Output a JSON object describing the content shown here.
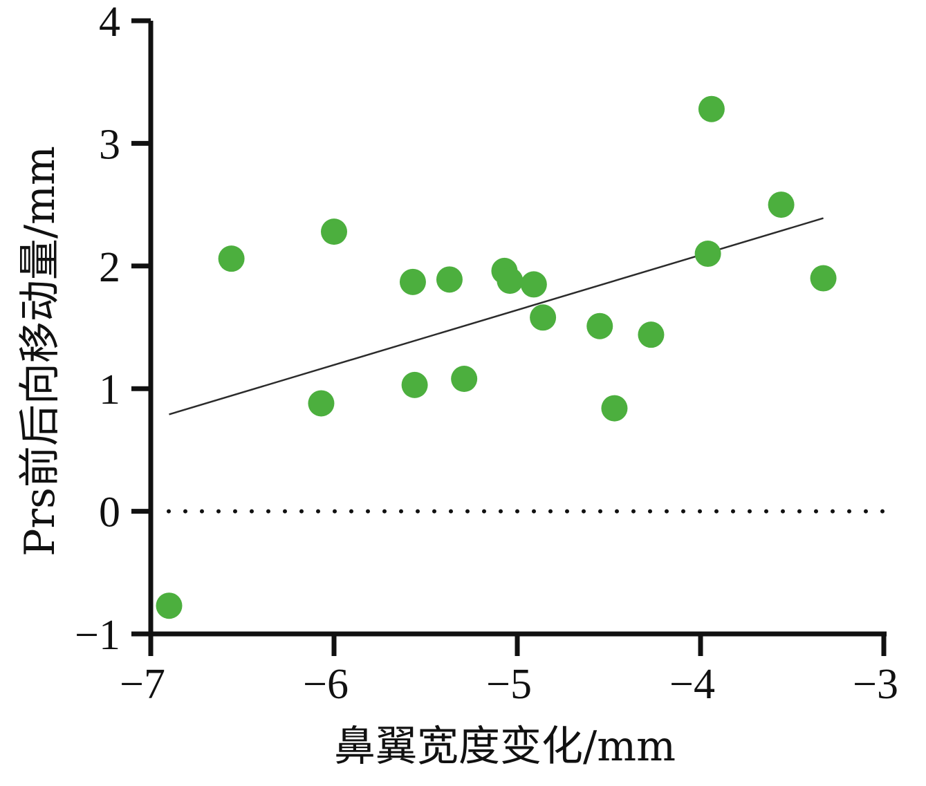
{
  "chart_data": {
    "type": "scatter",
    "xlabel": "鼻翼宽度变化/mm",
    "ylabel": "Prs前后向移动量/mm",
    "xlim": [
      -7,
      -3
    ],
    "ylim": [
      -1,
      4
    ],
    "x_ticks": [
      -7,
      -6,
      -5,
      -4,
      -3
    ],
    "y_ticks": [
      -1,
      0,
      1,
      2,
      3,
      4
    ],
    "x_tick_labels": [
      "−7",
      "−6",
      "−5",
      "−4",
      "−3"
    ],
    "y_tick_labels": [
      "−1",
      "0",
      "1",
      "2",
      "3",
      "4"
    ],
    "point_color": "#4caf3e",
    "line_color": "#2b2b2b",
    "reference_line": {
      "y": 0,
      "style": "dotted"
    },
    "trend_line": {
      "x": [
        -6.9,
        -3.33
      ],
      "y": [
        0.79,
        2.39
      ]
    },
    "series": [
      {
        "x": [
          -6.9,
          -6.56,
          -6.0,
          -6.07,
          -5.57,
          -5.56,
          -5.37,
          -5.29,
          -5.07,
          -5.04,
          -4.91,
          -4.86,
          -4.55,
          -4.47,
          -4.27,
          -3.96,
          -3.94,
          -3.56,
          -3.33
        ],
        "y": [
          -0.77,
          2.06,
          2.28,
          0.88,
          1.87,
          1.03,
          1.89,
          1.08,
          1.96,
          1.88,
          1.85,
          1.58,
          1.51,
          0.84,
          1.44,
          2.1,
          3.28,
          2.5,
          1.9
        ]
      }
    ]
  }
}
